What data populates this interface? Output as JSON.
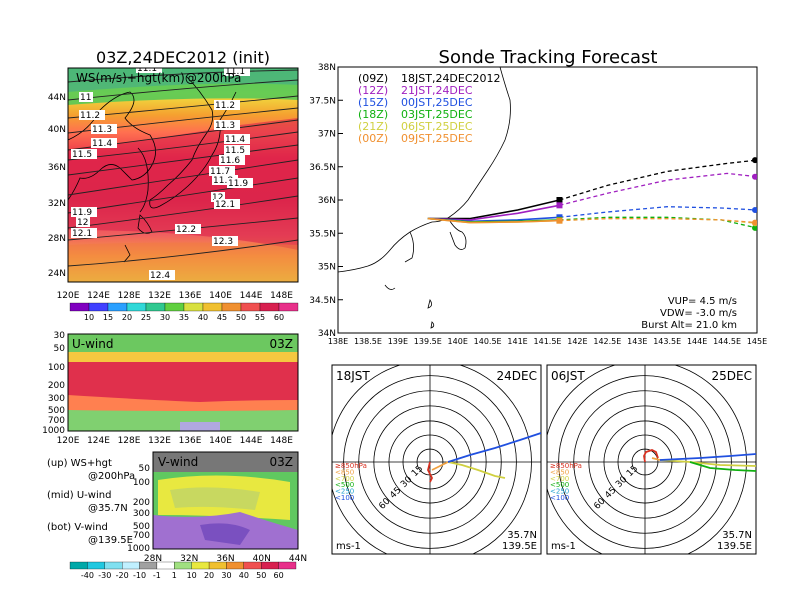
{
  "left": {
    "title": "03Z,24DEC2012 (init)",
    "map_label": "WS(m/s)+hgt(km)@200hPa",
    "lat_ticks": [
      "44N",
      "40N",
      "36N",
      "32N",
      "28N",
      "24N"
    ],
    "lon_ticks": [
      "120E",
      "124E",
      "128E",
      "132E",
      "136E",
      "140E",
      "144E",
      "148E"
    ],
    "contours": [
      "11.1",
      "11",
      "11.1",
      "11.2",
      "11.2",
      "11.3",
      "11.3",
      "11.4",
      "11.4",
      "11.5",
      "11.5",
      "11.6",
      "11.7",
      "11.8",
      "11.9",
      "12",
      "12.1",
      "11.9",
      "12",
      "12.1",
      "12.2",
      "12.3",
      "12.4"
    ],
    "ws_colorbar": [
      "10",
      "15",
      "20",
      "25",
      "30",
      "35",
      "40",
      "45",
      "50",
      "55",
      "60"
    ],
    "uwind": {
      "label": "U-wind",
      "time": "03Z",
      "pticks": [
        "30",
        "50",
        "100",
        "200",
        "300",
        "500",
        "700",
        "1000"
      ]
    },
    "vwind": {
      "label": "V-wind",
      "time": "03Z",
      "pticks": [
        "50",
        "100",
        "200",
        "300",
        "500",
        "700",
        "1000"
      ],
      "lat_ticks": [
        "28N",
        "32N",
        "36N",
        "40N",
        "44N"
      ]
    },
    "legend": [
      {
        "a": "(up) WS+hgt",
        "b": "@200hPa"
      },
      {
        "a": "(mid) U-wind",
        "b": "@35.7N"
      },
      {
        "a": "(bot) V-wind",
        "b": "@139.5E"
      }
    ],
    "v_colorbar": [
      "-40",
      "-30",
      "-20",
      "-10",
      "-1",
      "1",
      "10",
      "20",
      "30",
      "40",
      "50",
      "60"
    ]
  },
  "right": {
    "title": "Sonde Tracking Forecast",
    "legend": [
      {
        "code": "(09Z)",
        "text": "18JST,24DEC2012",
        "color": "#000000"
      },
      {
        "code": "(12Z)",
        "text": "21JST,24DEC",
        "color": "#a020c0"
      },
      {
        "code": "(15Z)",
        "text": "00JST,25DEC",
        "color": "#2050e0"
      },
      {
        "code": "(18Z)",
        "text": "03JST,25DEC",
        "color": "#10b010"
      },
      {
        "code": "(21Z)",
        "text": "06JST,25DEC",
        "color": "#d0d040"
      },
      {
        "code": "(00Z)",
        "text": "09JST,25DEC",
        "color": "#f09030"
      }
    ],
    "lat_ticks": [
      "38N",
      "37.5N",
      "37N",
      "36.5N",
      "36N",
      "35.5N",
      "35N",
      "34.5N",
      "34N"
    ],
    "lon_ticks": [
      "138E",
      "138.5E",
      "139E",
      "139.5E",
      "140E",
      "140.5E",
      "141E",
      "141.5E",
      "142E",
      "142.5E",
      "143E",
      "143.5E",
      "144E",
      "144.5E",
      "145E"
    ],
    "params": [
      "VUP= 4.5 m/s",
      "VDW= -3.0 m/s",
      "Burst Alt= 21.0 km"
    ],
    "hodo1": {
      "time": "18JST",
      "date": "24DEC",
      "lat": "35.7N",
      "lon": "139.5E",
      "unit": "ms-1"
    },
    "hodo2": {
      "time": "06JST",
      "date": "25DEC",
      "lat": "35.7N",
      "lon": "139.5E",
      "unit": "ms-1"
    },
    "hodo_rings": [
      "15",
      "30",
      "45",
      "60"
    ],
    "hodo_levels": [
      "≥850hPa",
      "<850",
      "<700",
      "<500",
      "<250",
      "<100"
    ]
  },
  "chart_data": [
    {
      "type": "heatmap",
      "title": "03Z,24DEC2012 (init)",
      "subtitle": "WS(m/s)+hgt(km)@200hPa",
      "x_range": [
        120,
        150
      ],
      "y_range": [
        22,
        47
      ],
      "colorbar": [
        10,
        15,
        20,
        25,
        30,
        35,
        40,
        45,
        50,
        55,
        60
      ]
    },
    {
      "type": "heatmap",
      "title": "U-wind",
      "xlim": [
        120,
        150
      ],
      "ylim": [
        1000,
        30
      ]
    },
    {
      "type": "heatmap",
      "title": "V-wind",
      "xlim": [
        28,
        44
      ],
      "ylim": [
        1000,
        30
      ]
    },
    {
      "type": "line",
      "title": "Sonde Tracking Forecast",
      "xlim": [
        138,
        145
      ],
      "ylim": [
        34,
        38
      ],
      "series": [
        {
          "name": "(09Z) 18JST,24DEC2012",
          "x": [
            139.5,
            140.2,
            141.0,
            141.7,
            142.5,
            143.5,
            144.5,
            145.0
          ],
          "y": [
            35.72,
            35.72,
            35.85,
            36.0,
            36.22,
            36.43,
            36.55,
            36.6
          ]
        },
        {
          "name": "(12Z) 21JST,24DEC",
          "x": [
            139.5,
            140.2,
            141.0,
            141.7,
            142.5,
            143.5,
            144.5,
            145.0
          ],
          "y": [
            35.72,
            35.7,
            35.8,
            35.92,
            36.1,
            36.3,
            36.4,
            36.35
          ]
        },
        {
          "name": "(15Z) 00JST,25DEC",
          "x": [
            139.5,
            140.2,
            141.0,
            141.7,
            142.5,
            143.5,
            144.4,
            145.0
          ],
          "y": [
            35.72,
            35.68,
            35.7,
            35.74,
            35.82,
            35.9,
            35.88,
            35.85
          ]
        },
        {
          "name": "(18Z) 03JST,25DEC",
          "x": [
            139.5,
            140.2,
            141.0,
            141.7,
            142.5,
            143.5,
            144.4,
            145.0
          ],
          "y": [
            35.72,
            35.67,
            35.68,
            35.7,
            35.74,
            35.74,
            35.7,
            35.58
          ]
        },
        {
          "name": "(21Z) 06JST,25DEC",
          "x": [
            139.5,
            140.2,
            141.0,
            141.7,
            142.5,
            143.5,
            144.4,
            145.0
          ],
          "y": [
            35.72,
            35.66,
            35.67,
            35.69,
            35.72,
            35.72,
            35.7,
            35.65
          ]
        },
        {
          "name": "(00Z) 09JST,25DEC",
          "x": [
            139.5,
            140.2,
            141.0,
            141.7,
            142.5,
            143.5,
            144.4,
            145.0
          ],
          "y": [
            35.72,
            35.66,
            35.67,
            35.69,
            35.72,
            35.72,
            35.7,
            35.66
          ]
        }
      ]
    }
  ]
}
